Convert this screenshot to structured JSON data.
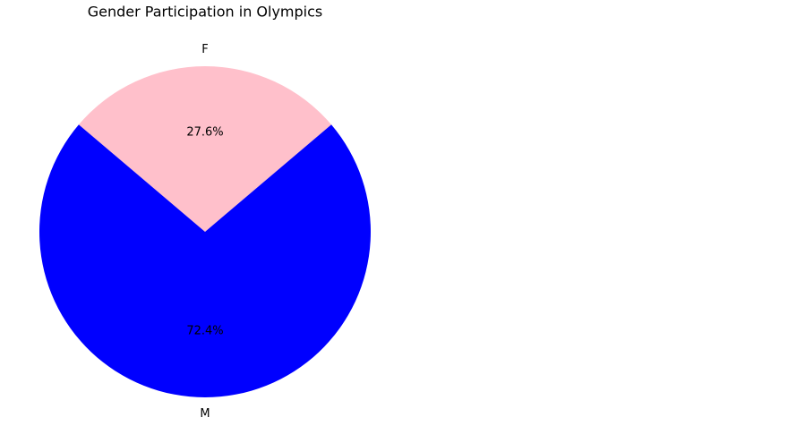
{
  "chart_data": {
    "type": "pie",
    "title": "Gender Participation in Olympics",
    "categories": [
      "F",
      "M"
    ],
    "values": [
      27.6,
      72.4
    ],
    "value_labels": [
      "27.6%",
      "72.4%"
    ],
    "colors": [
      "pink",
      "blue"
    ]
  }
}
